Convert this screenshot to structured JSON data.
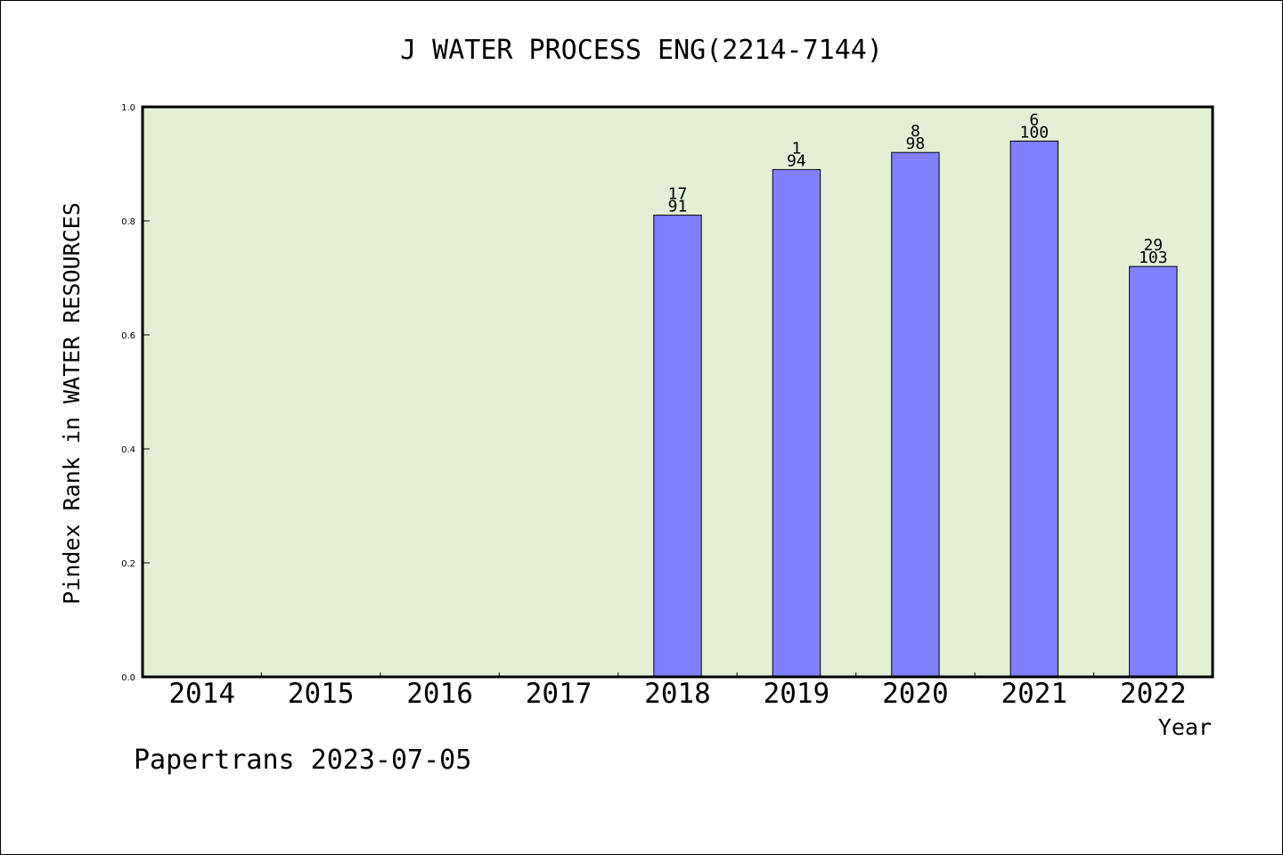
{
  "colors": {
    "plot_background": "#e2f0d6",
    "bar_fill": "#8080ff",
    "bar_stroke": "#000000",
    "axis": "#000000"
  },
  "footer": "Papertrans 2023-07-05",
  "chart_data": {
    "type": "bar",
    "title": "J WATER PROCESS ENG(2214-7144)",
    "xlabel": "Year",
    "ylabel": "Pindex Rank in WATER RESOURCES",
    "ylim": [
      0,
      1.0
    ],
    "yticks": [
      "0.0",
      "0.2",
      "0.4",
      "0.6",
      "0.8",
      "1.0"
    ],
    "grid": false,
    "categories": [
      "2014",
      "2015",
      "2016",
      "2017",
      "2018",
      "2019",
      "2020",
      "2021",
      "2022"
    ],
    "values": [
      null,
      null,
      null,
      null,
      0.81,
      0.89,
      0.92,
      0.94,
      0.72
    ],
    "labels_top": [
      null,
      null,
      null,
      null,
      "17",
      "1",
      "8",
      "6",
      "29"
    ],
    "labels_bottom": [
      null,
      null,
      null,
      null,
      "91",
      "94",
      "98",
      "100",
      "103"
    ]
  }
}
